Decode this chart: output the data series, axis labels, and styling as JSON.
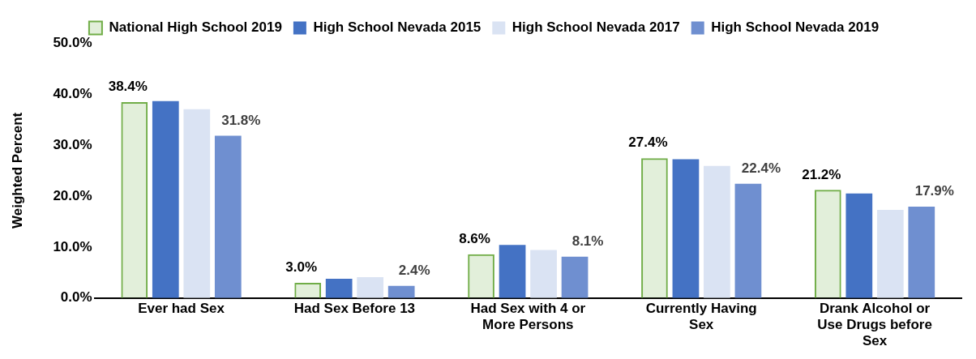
{
  "chart_data": {
    "type": "bar",
    "ylabel": "Weighted Percent",
    "categories": [
      "Ever had Sex",
      "Had Sex Before 13",
      "Had Sex with 4 or More Persons",
      "Currently Having Sex",
      "Drank Alcohol or Use Drugs before Sex"
    ],
    "series": [
      {
        "name": "National High School 2019",
        "color": "#70ad47",
        "values": [
          38.4,
          3.0,
          8.6,
          27.4,
          21.2
        ],
        "value_labels": [
          "38.4%",
          "3.0%",
          "8.6%",
          "27.4%",
          "21.2%"
        ]
      },
      {
        "name": "High School Nevada 2015",
        "color": "#4472c4",
        "values": [
          38.6,
          3.8,
          10.4,
          27.2,
          20.5
        ]
      },
      {
        "name": "High School Nevada 2017",
        "color": "#dae3f3",
        "values": [
          37.0,
          4.1,
          9.4,
          25.9,
          17.3
        ]
      },
      {
        "name": "High School Nevada 2019",
        "color": "#6f8fd0",
        "values": [
          31.8,
          2.4,
          8.1,
          22.4,
          17.9
        ],
        "value_labels": [
          "31.8%",
          "2.4%",
          "8.1%",
          "22.4%",
          "17.9%"
        ]
      }
    ],
    "ylim": [
      0,
      50
    ],
    "yticks": [
      {
        "value": 0,
        "label": "0.0%"
      },
      {
        "value": 10,
        "label": "10.0%"
      },
      {
        "value": 20,
        "label": "20.0%"
      },
      {
        "value": 30,
        "label": "30.0%"
      },
      {
        "value": 40,
        "label": "40.0%"
      },
      {
        "value": 50,
        "label": "50.0%"
      }
    ],
    "legend": "top",
    "grid": false
  }
}
